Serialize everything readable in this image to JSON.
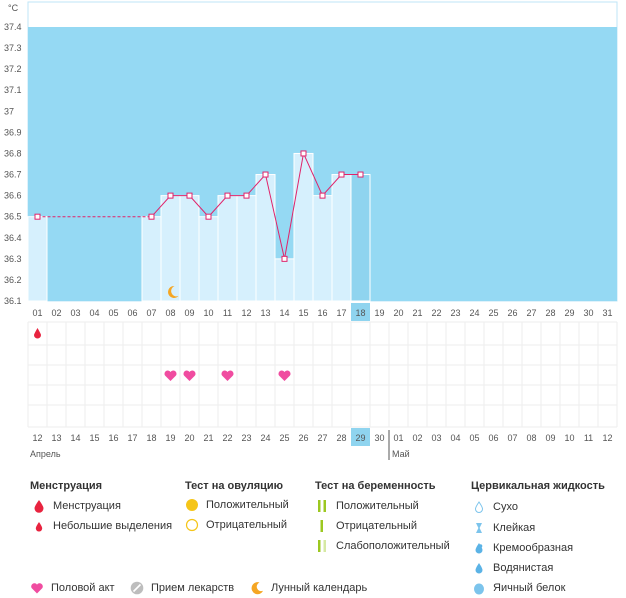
{
  "chart_data": {
    "type": "line",
    "unit_label": "°C",
    "ylim": [
      36.1,
      37.4
    ],
    "y_ticks": [
      "37.4",
      "37.3",
      "37.2",
      "37.1",
      "37",
      "36.9",
      "36.8",
      "36.7",
      "36.6",
      "36.5",
      "36.4",
      "36.3",
      "36.2",
      "36.1"
    ],
    "cycle_days": [
      "01",
      "02",
      "03",
      "04",
      "05",
      "06",
      "07",
      "08",
      "09",
      "10",
      "11",
      "12",
      "13",
      "14",
      "15",
      "16",
      "17",
      "18",
      "19",
      "20",
      "21",
      "22",
      "23",
      "24",
      "25",
      "26",
      "27",
      "28",
      "29",
      "30",
      "31"
    ],
    "selected_cycle_day": "18",
    "series": [
      {
        "values": [
          36.5,
          null,
          null,
          null,
          null,
          null,
          36.5,
          36.6,
          36.6,
          36.5,
          36.6,
          36.6,
          36.7,
          36.3,
          36.8,
          36.6,
          36.7,
          36.7,
          null,
          null,
          null,
          null,
          null,
          null,
          null,
          null,
          null,
          null,
          null,
          null,
          null
        ]
      }
    ],
    "dashed_interpolation": [
      1,
      7
    ],
    "grid": true
  },
  "calendar": {
    "dates": [
      {
        "d": "12",
        "red": true
      },
      {
        "d": "13",
        "red": false
      },
      {
        "d": "14",
        "red": false
      },
      {
        "d": "15",
        "red": false
      },
      {
        "d": "16",
        "red": false
      },
      {
        "d": "17",
        "red": false
      },
      {
        "d": "18",
        "red": true
      },
      {
        "d": "19",
        "red": true
      },
      {
        "d": "20",
        "red": false
      },
      {
        "d": "21",
        "red": false
      },
      {
        "d": "22",
        "red": true
      },
      {
        "d": "23",
        "red": false
      },
      {
        "d": "24",
        "red": false
      },
      {
        "d": "25",
        "red": true
      },
      {
        "d": "26",
        "red": true
      },
      {
        "d": "27",
        "red": false
      },
      {
        "d": "28",
        "red": false
      },
      {
        "d": "29",
        "red": false
      },
      {
        "d": "30",
        "red": false
      },
      {
        "d": "01",
        "red": false
      },
      {
        "d": "02",
        "red": true
      },
      {
        "d": "03",
        "red": true
      },
      {
        "d": "04",
        "red": false
      },
      {
        "d": "05",
        "red": false
      },
      {
        "d": "06",
        "red": false
      },
      {
        "d": "07",
        "red": false
      },
      {
        "d": "08",
        "red": false
      },
      {
        "d": "09",
        "red": true
      },
      {
        "d": "10",
        "red": true
      },
      {
        "d": "11",
        "red": false
      },
      {
        "d": "12",
        "red": false
      }
    ],
    "selected_date": "29",
    "month_start": "Апрель",
    "month_next": "Май",
    "month_next_index": 19,
    "menstruation_days": [
      1
    ],
    "intercourse_days": [
      8,
      9,
      11,
      14
    ],
    "lunar_day": 8
  },
  "colors": {
    "chart_bg": "#95d9f3",
    "bar_fill": "#d6f0fd",
    "line": "#e0236a",
    "selected": "#8fd4ef",
    "red_date": "#e0236a",
    "heart": "#f04ca0",
    "drop": "#e8233f",
    "ovulation_yellow": "#f5c518",
    "pregnancy_green": "#9cc820",
    "cervical_blue": "#7cc4ec",
    "moon": "#f5a623"
  },
  "legend": {
    "menstruation": {
      "title": "Менструация",
      "items": [
        {
          "label": "Менструация",
          "icon": "drop-icon"
        },
        {
          "label": "Небольшие выделения",
          "icon": "small-drop-icon"
        }
      ]
    },
    "ovulation_test": {
      "title": "Тест на овуляцию",
      "items": [
        {
          "label": "Положительный",
          "icon": "filled-circle-icon"
        },
        {
          "label": "Отрицательный",
          "icon": "outline-circle-icon"
        }
      ]
    },
    "pregnancy_test": {
      "title": "Тест на беременность",
      "items": [
        {
          "label": "Положительный",
          "icon": "two-lines-icon"
        },
        {
          "label": "Отрицательный",
          "icon": "one-line-icon"
        },
        {
          "label": "Слабоположительный",
          "icon": "faint-lines-icon"
        }
      ]
    },
    "cervical_fluid": {
      "title": "Цервикальная жидкость",
      "items": [
        {
          "label": "Сухо",
          "icon": "outline-drop-icon"
        },
        {
          "label": "Клейкая",
          "icon": "hourglass-icon"
        },
        {
          "label": "Кремообразная",
          "icon": "cream-drop-icon"
        },
        {
          "label": "Водянистая",
          "icon": "water-drop-icon"
        },
        {
          "label": "Яичный белок",
          "icon": "egg-white-icon"
        }
      ]
    },
    "other": [
      {
        "label": "Половой акт",
        "icon": "heart-icon"
      },
      {
        "label": "Прием лекарств",
        "icon": "pill-icon"
      },
      {
        "label": "Лунный календарь",
        "icon": "moon-icon"
      }
    ]
  }
}
